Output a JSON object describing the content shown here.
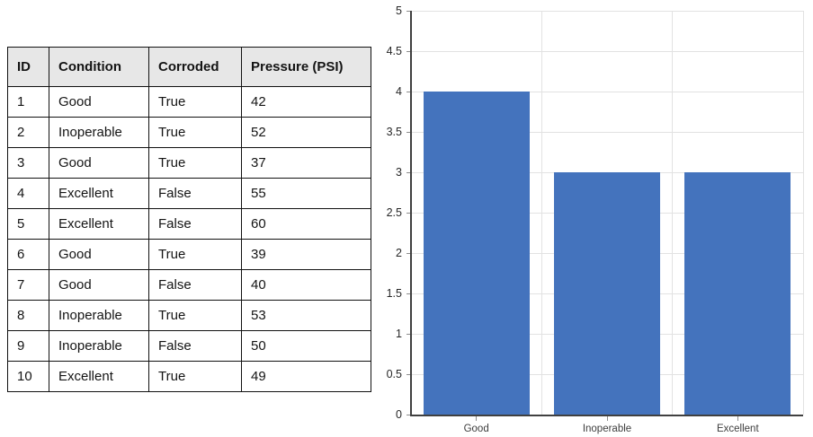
{
  "table": {
    "headers": [
      "ID",
      "Condition",
      "Corroded",
      "Pressure (PSI)"
    ],
    "rows": [
      [
        "1",
        "Good",
        "True",
        "42"
      ],
      [
        "2",
        "Inoperable",
        "True",
        "52"
      ],
      [
        "3",
        "Good",
        "True",
        "37"
      ],
      [
        "4",
        "Excellent",
        "False",
        "55"
      ],
      [
        "5",
        "Excellent",
        "False",
        "60"
      ],
      [
        "6",
        "Good",
        "True",
        "39"
      ],
      [
        "7",
        "Good",
        "False",
        "40"
      ],
      [
        "8",
        "Inoperable",
        "True",
        "53"
      ],
      [
        "9",
        "Inoperable",
        "False",
        "50"
      ],
      [
        "10",
        "Excellent",
        "True",
        "49"
      ]
    ]
  },
  "chart_data": {
    "type": "bar",
    "categories": [
      "Good",
      "Inoperable",
      "Excellent"
    ],
    "values": [
      4,
      3,
      3
    ],
    "title": "",
    "xlabel": "",
    "ylabel": "",
    "ylim": [
      0,
      5
    ],
    "ytick_step": 0.5,
    "ytick_labels": [
      "0",
      "0.5",
      "1",
      "1.5",
      "2",
      "2.5",
      "3",
      "3.5",
      "4",
      "4.5",
      "5"
    ],
    "grid": true,
    "legend": "none",
    "bar_color": "#4473BD",
    "gridline_color": "#e2e2e2",
    "axis_color": "#404040",
    "tick_color": "#8c8c8c",
    "y_label_color": "#262626",
    "x_label_color": "#3d3d3d",
    "header_bg_color": "#e7e7e7",
    "table_border_color": "#111111"
  }
}
